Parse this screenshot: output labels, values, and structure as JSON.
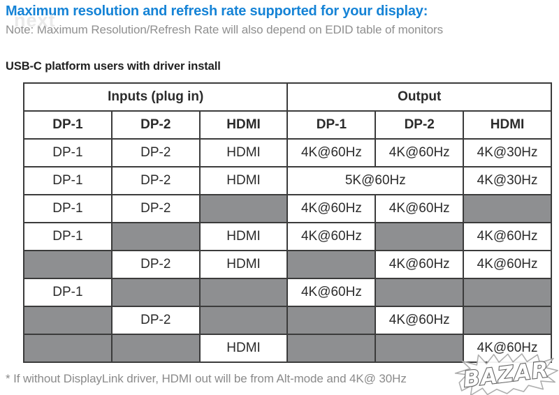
{
  "page": {
    "title": "Maximum resolution and refresh rate supported for your display:",
    "note": "Note: Maximum Resolution/Refresh Rate will also depend on EDID table of monitors",
    "section_heading": "USB-C platform users with driver install",
    "footnote": "* If without DisplayLink driver, HDMI out will be from Alt-mode and 4K@ 30Hz",
    "watermark_top_left": "next",
    "watermark_bottom_right": "BAZAR"
  },
  "colors": {
    "title_blue": "#1583d6",
    "note_gray": "#8f8f8f",
    "heading_dark": "#212121",
    "cell_gray": "#8e8f91",
    "border_dark": "#3b3b3b",
    "cell_text": "#2b2b2b",
    "footnote_gray": "#8a8a8a"
  },
  "table": {
    "group_headers": [
      {
        "label": "Inputs (plug in)",
        "span": 3
      },
      {
        "label": "Output",
        "span": 3
      }
    ],
    "column_headers": [
      "DP-1",
      "DP-2",
      "HDMI",
      "DP-1",
      "DP-2",
      "HDMI"
    ],
    "rows": [
      {
        "cells": [
          {
            "text": "DP-1"
          },
          {
            "text": "DP-2"
          },
          {
            "text": "HDMI"
          },
          {
            "text": "4K@60Hz"
          },
          {
            "text": "4K@60Hz"
          },
          {
            "text": "4K@30Hz"
          }
        ]
      },
      {
        "cells": [
          {
            "text": "DP-1"
          },
          {
            "text": "DP-2"
          },
          {
            "text": "HDMI"
          },
          {
            "text": "5K@60Hz",
            "span": 2
          },
          {
            "text": "4K@30Hz"
          }
        ]
      },
      {
        "cells": [
          {
            "text": "DP-1"
          },
          {
            "text": "DP-2"
          },
          {
            "gray": true
          },
          {
            "text": "4K@60Hz"
          },
          {
            "text": "4K@60Hz"
          },
          {
            "gray": true
          }
        ]
      },
      {
        "cells": [
          {
            "text": "DP-1"
          },
          {
            "gray": true
          },
          {
            "text": "HDMI"
          },
          {
            "text": "4K@60Hz"
          },
          {
            "gray": true
          },
          {
            "text": "4K@60Hz"
          }
        ]
      },
      {
        "cells": [
          {
            "gray": true
          },
          {
            "text": "DP-2"
          },
          {
            "text": "HDMI"
          },
          {
            "gray": true
          },
          {
            "text": "4K@60Hz"
          },
          {
            "text": "4K@60Hz"
          }
        ]
      },
      {
        "cells": [
          {
            "text": "DP-1"
          },
          {
            "gray": true
          },
          {
            "gray": true
          },
          {
            "text": "4K@60Hz"
          },
          {
            "gray": true
          },
          {
            "gray": true
          }
        ]
      },
      {
        "cells": [
          {
            "gray": true
          },
          {
            "text": "DP-2"
          },
          {
            "gray": true
          },
          {
            "gray": true
          },
          {
            "text": "4K@60Hz"
          },
          {
            "gray": true
          }
        ]
      },
      {
        "cells": [
          {
            "gray": true
          },
          {
            "gray": true
          },
          {
            "text": "HDMI"
          },
          {
            "gray": true
          },
          {
            "gray": true
          },
          {
            "text": "4K@60Hz"
          }
        ]
      }
    ]
  }
}
